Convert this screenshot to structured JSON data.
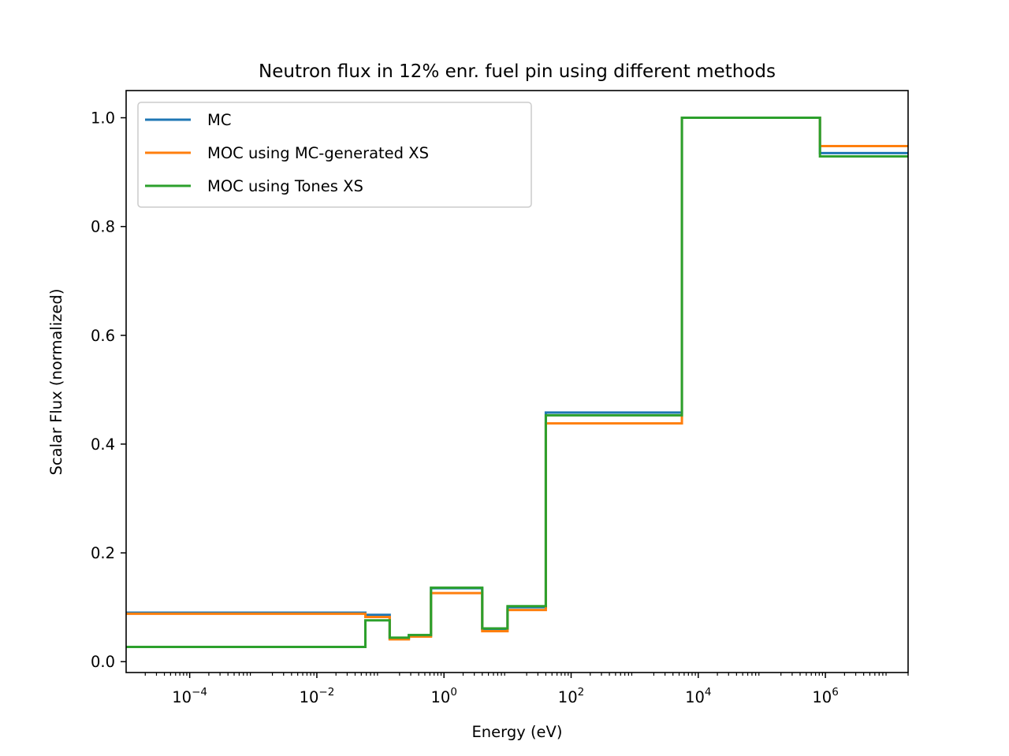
{
  "chart_data": {
    "type": "line",
    "drawstyle": "steps-post",
    "title": "Neutron flux in 12% enr. fuel pin using different methods",
    "xlabel": "Energy (eV)",
    "ylabel": "Scalar Flux (normalized)",
    "xscale": "log",
    "xlim": [
      1e-05,
      20000000.0
    ],
    "ylim": [
      -0.02,
      1.05
    ],
    "grid": false,
    "legend_position": "upper left",
    "x_ticks": [
      {
        "value": 0.0001,
        "base": "10",
        "exp": "−4"
      },
      {
        "value": 0.01,
        "base": "10",
        "exp": "−2"
      },
      {
        "value": 1,
        "base": "10",
        "exp": "0"
      },
      {
        "value": 100,
        "base": "10",
        "exp": "2"
      },
      {
        "value": 10000,
        "base": "10",
        "exp": "4"
      },
      {
        "value": 1000000,
        "base": "10",
        "exp": "6"
      }
    ],
    "y_ticks": [
      {
        "value": 0.0,
        "label": "0.0"
      },
      {
        "value": 0.2,
        "label": "0.2"
      },
      {
        "value": 0.4,
        "label": "0.4"
      },
      {
        "value": 0.6,
        "label": "0.6"
      },
      {
        "value": 0.8,
        "label": "0.8"
      },
      {
        "value": 1.0,
        "label": "1.0"
      }
    ],
    "energy_group_edges": [
      1e-05,
      0.058,
      0.14,
      0.28,
      0.625,
      4.0,
      10.0,
      40.0,
      5530.0,
      821000.0,
      20000000.0
    ],
    "series": [
      {
        "name": "MC",
        "color": "#1f77b4",
        "values": [
          0.09,
          0.086,
          0.042,
          0.048,
          0.135,
          0.06,
          0.1,
          0.458,
          1.0,
          0.935
        ]
      },
      {
        "name": "MOC using MC-generated XS",
        "color": "#ff7f0e",
        "values": [
          0.088,
          0.082,
          0.041,
          0.046,
          0.126,
          0.056,
          0.095,
          0.438,
          1.0,
          0.948
        ]
      },
      {
        "name": "MOC using Tones XS",
        "color": "#2ca02c",
        "values": [
          0.027,
          0.076,
          0.044,
          0.049,
          0.136,
          0.061,
          0.102,
          0.453,
          1.0,
          0.929
        ]
      }
    ]
  }
}
